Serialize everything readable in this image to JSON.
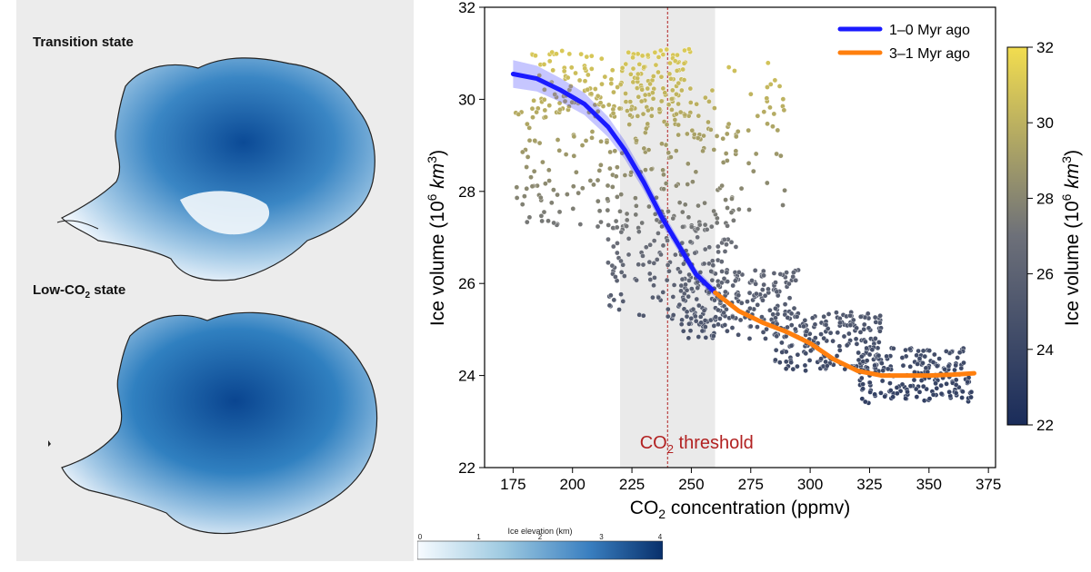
{
  "left_panel": {
    "transition_title": "Transition state",
    "lowco2_title_prefix": "Low-CO",
    "lowco2_title_sub": "2",
    "lowco2_title_suffix": " state"
  },
  "elevation_colorbar": {
    "label": "Ice elevation (km)",
    "ticks": [
      "0",
      "1",
      "2",
      "3",
      "4"
    ],
    "colors": [
      "#f7fbff",
      "#08306b"
    ]
  },
  "chart_data": {
    "type": "scatter",
    "xlabel_prefix": "CO",
    "xlabel_sub": "2",
    "xlabel_suffix": " concentration (ppmv)",
    "ylabel_prefix": "Ice volume (10",
    "ylabel_sup": "6",
    "ylabel_unit": " km",
    "ylabel_unit_sup": "3",
    "ylabel_suffix": ")",
    "xlim": [
      163,
      378
    ],
    "ylim": [
      22,
      32
    ],
    "xticks": [
      "175",
      "200",
      "225",
      "250",
      "275",
      "300",
      "325",
      "350",
      "375"
    ],
    "yticks": [
      "22",
      "24",
      "26",
      "28",
      "30",
      "32"
    ],
    "grid": false,
    "legend_position": "top-right",
    "threshold": {
      "x": 240,
      "band": [
        220,
        260
      ],
      "label_prefix": "CO",
      "label_sub": "2",
      "label_suffix": " threshold",
      "color": "#b22222"
    },
    "series": [
      {
        "name": "1–0 Myr ago",
        "color": "#1a1aff",
        "x": [
          175,
          185,
          195,
          205,
          215,
          222,
          230,
          238,
          245,
          252,
          260
        ],
        "y": [
          30.55,
          30.45,
          30.2,
          29.9,
          29.4,
          28.9,
          28.2,
          27.4,
          26.8,
          26.2,
          25.8
        ]
      },
      {
        "name": "3–1 Myr ago",
        "color": "#ff7f0e",
        "x": [
          260,
          270,
          280,
          290,
          300,
          310,
          320,
          330,
          340,
          350,
          360,
          369
        ],
        "y": [
          25.8,
          25.4,
          25.15,
          24.95,
          24.7,
          24.35,
          24.1,
          24.0,
          24.0,
          24.0,
          24.02,
          24.05
        ]
      }
    ],
    "scatter_clusters": [
      {
        "x": [
          183,
          250
        ],
        "y": [
          29.6,
          31.1
        ],
        "n": 190
      },
      {
        "x": [
          176,
          265
        ],
        "y": [
          27.2,
          30.2
        ],
        "n": 210
      },
      {
        "x": [
          265,
          290
        ],
        "y": [
          27.5,
          30.9
        ],
        "n": 45
      },
      {
        "x": [
          215,
          270
        ],
        "y": [
          25.2,
          27.6
        ],
        "n": 180
      },
      {
        "x": [
          245,
          295
        ],
        "y": [
          24.8,
          26.3
        ],
        "n": 200
      },
      {
        "x": [
          285,
          330
        ],
        "y": [
          24.1,
          25.4
        ],
        "n": 180
      },
      {
        "x": [
          320,
          368
        ],
        "y": [
          23.4,
          24.6
        ],
        "n": 200
      }
    ],
    "colorbar": {
      "ticks": [
        "22",
        "24",
        "26",
        "28",
        "30",
        "32"
      ],
      "range": [
        22,
        32
      ],
      "label_prefix": "Ice volume (10",
      "label_sup": "6",
      "label_unit": " km",
      "label_unit_sup": "3",
      "label_suffix": ")",
      "colors": [
        "#1a2c5a",
        "#6d7079",
        "#f2dd4f"
      ]
    }
  }
}
